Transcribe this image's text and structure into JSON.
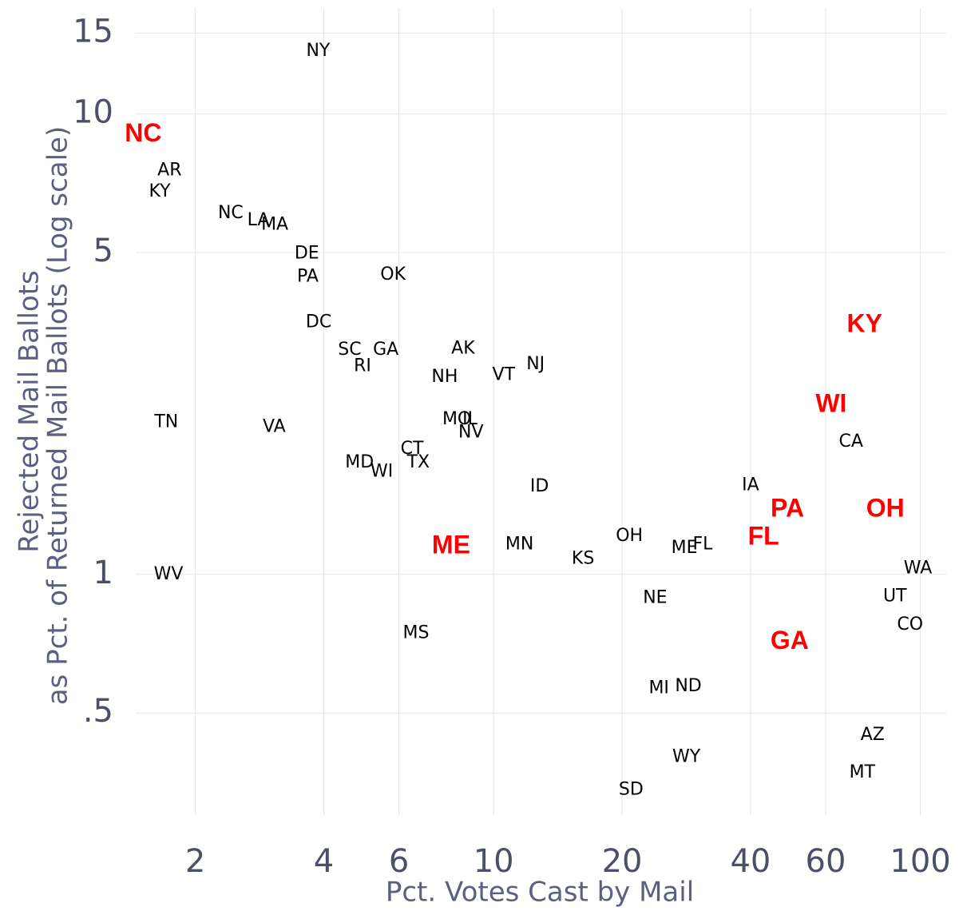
{
  "chart_data": {
    "type": "scatter",
    "xlabel": "Pct. Votes Cast by Mail",
    "ylabel": [
      "Rejected Mail Ballots",
      "as Pct. of Returned Mail Ballots (Log scale)"
    ],
    "xscale": "log",
    "yscale": "log",
    "grid": true,
    "xlim": [
      1.45,
      115
    ],
    "ylim": [
      0.3,
      17
    ],
    "xticks": [
      2,
      4,
      6,
      10,
      20,
      40,
      60,
      100
    ],
    "yticks": [
      15,
      10,
      5,
      1,
      {
        "value": 0.5,
        "label": ".5"
      }
    ],
    "series": [
      {
        "color": "#000000",
        "labels": [
          "NY",
          "AR",
          "KY",
          "NC",
          "LA",
          "MA",
          "DE",
          "PA",
          "OK",
          "DC",
          "SC",
          "GA",
          "RI",
          "AK",
          "NH",
          "VT",
          "NJ",
          "TN",
          "VA",
          "MO",
          "IL",
          "NV",
          "CT",
          "TX",
          "MD",
          "WI",
          "ID",
          "MS",
          "WV",
          "MN",
          "KS",
          "OH",
          "NE",
          "ME",
          "FL",
          "MI",
          "ND",
          "WY",
          "SD",
          "IA",
          "CA",
          "WA",
          "UT",
          "CO",
          "AZ",
          "MT"
        ],
        "x": [
          3.88,
          1.74,
          1.65,
          2.42,
          2.81,
          3.07,
          3.65,
          3.67,
          5.81,
          3.89,
          4.6,
          5.59,
          4.93,
          8.48,
          7.68,
          10.56,
          12.54,
          1.71,
          3.06,
          8.2,
          8.8,
          8.85,
          6.44,
          6.66,
          4.85,
          5.47,
          12.81,
          6.58,
          1.73,
          11.5,
          16.2,
          20.8,
          23.9,
          28.0,
          30.9,
          24.4,
          28.6,
          28.3,
          21.0,
          40.0,
          68.8,
          98.7,
          87.2,
          94.6,
          77.3,
          73.1
        ],
        "values": [
          13.7,
          7.54,
          6.78,
          6.09,
          5.87,
          5.74,
          4.97,
          4.43,
          4.47,
          3.53,
          3.07,
          3.07,
          2.83,
          3.09,
          2.68,
          2.71,
          2.86,
          2.14,
          2.09,
          2.17,
          2.17,
          2.03,
          1.87,
          1.75,
          1.75,
          1.67,
          1.55,
          0.745,
          1.0,
          1.16,
          1.08,
          1.21,
          0.888,
          1.14,
          1.16,
          0.565,
          0.571,
          0.401,
          0.34,
          1.56,
          1.94,
          1.03,
          0.895,
          0.776,
          0.447,
          0.371
        ]
      },
      {
        "color": "#ff0000",
        "labels": [
          "NC",
          "ME",
          "KY",
          "WI",
          "PA",
          "OH",
          "FL",
          "GA"
        ],
        "x": [
          1.51,
          7.95,
          74.0,
          61.8,
          48.8,
          82.8,
          42.9,
          49.4
        ],
        "values": [
          9.02,
          1.15,
          3.48,
          2.33,
          1.38,
          1.38,
          1.2,
          0.713
        ]
      }
    ]
  }
}
